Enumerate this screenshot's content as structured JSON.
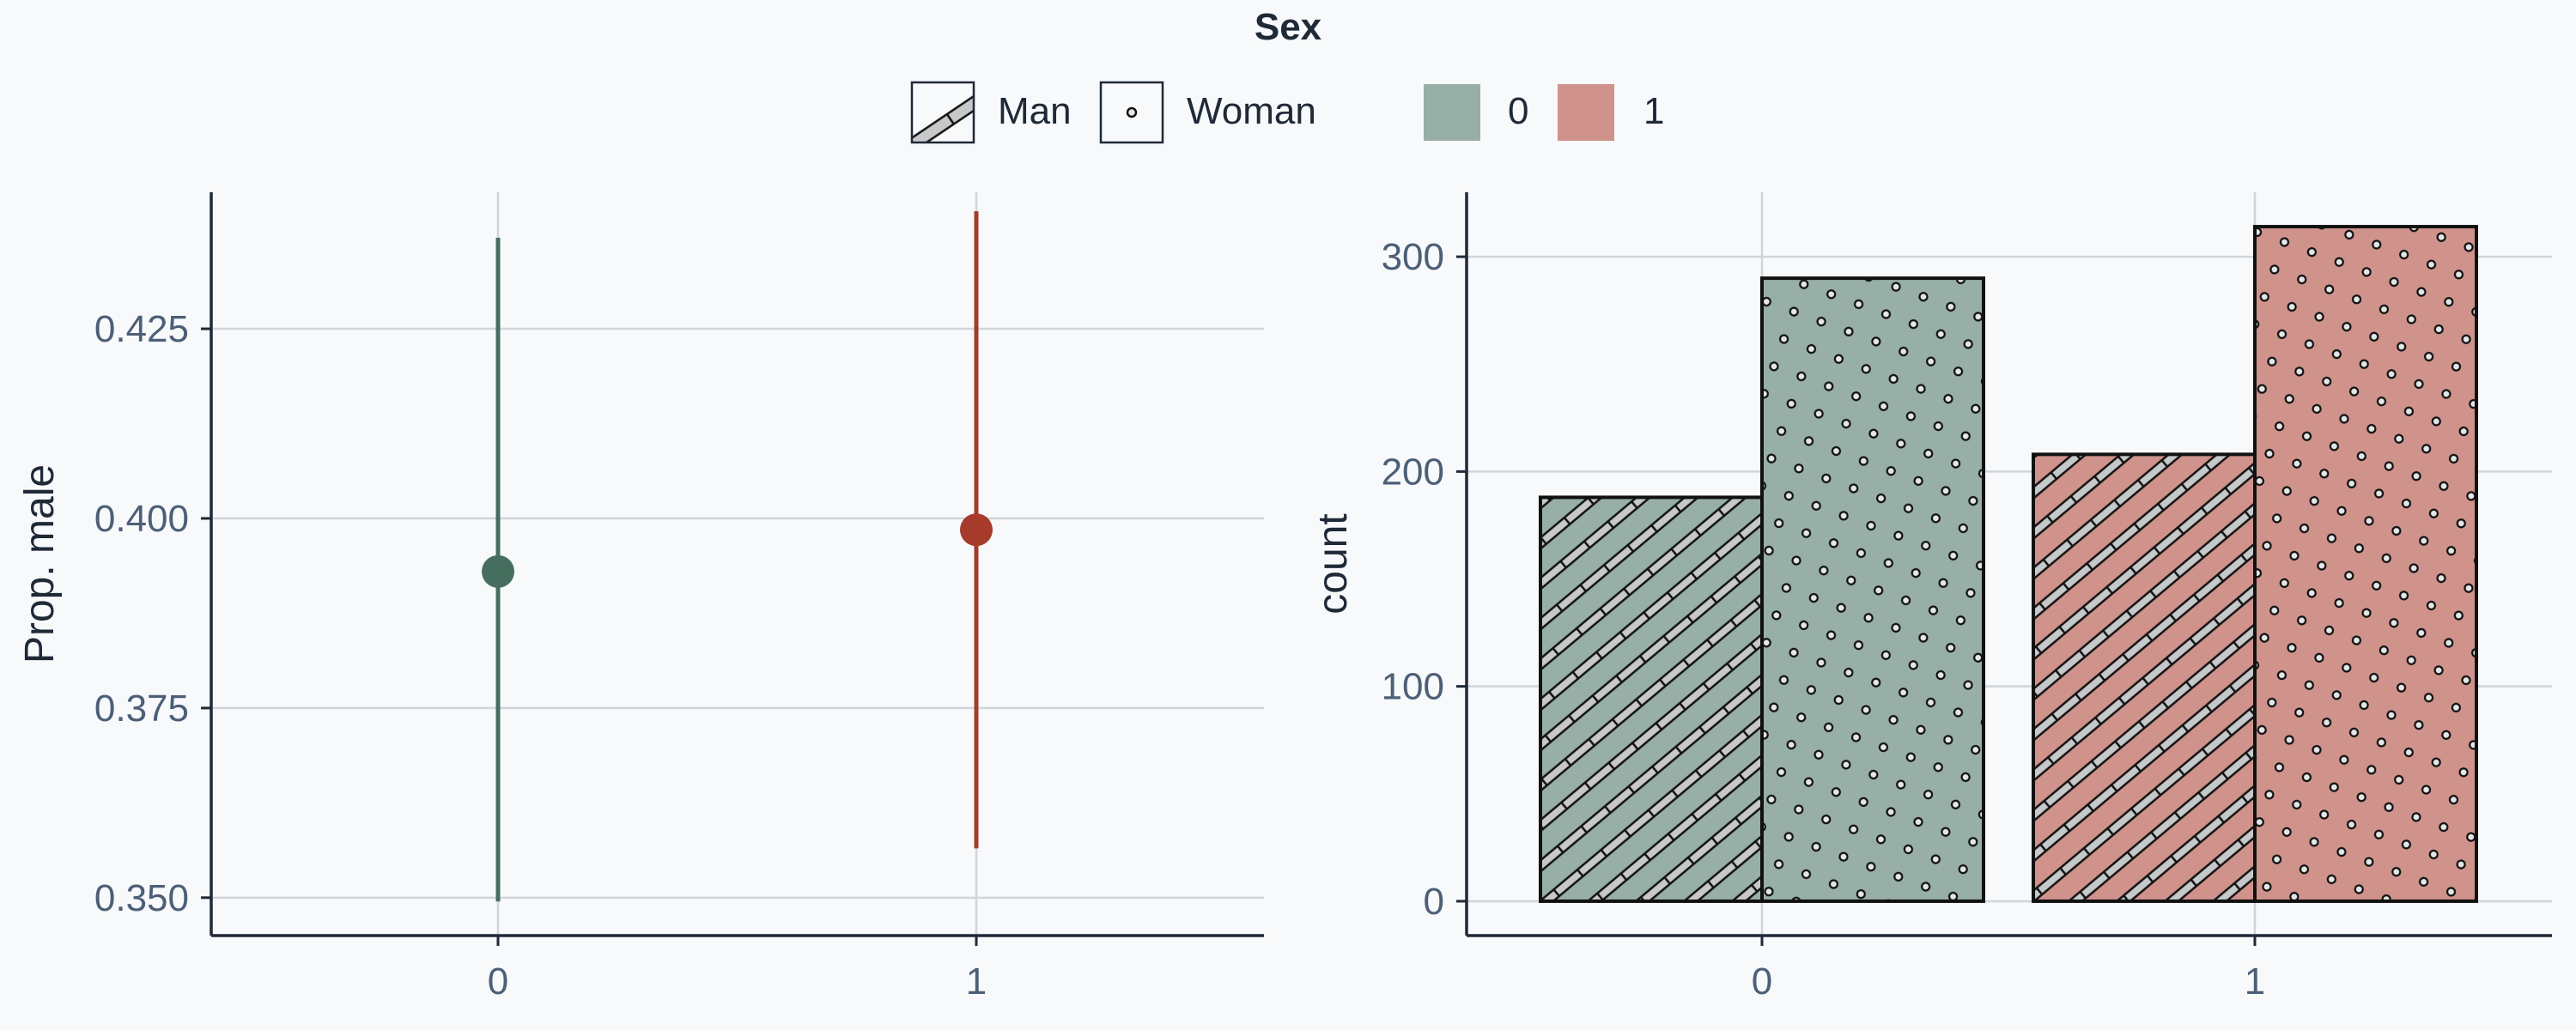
{
  "legend": {
    "title": "Sex",
    "pattern_items": [
      {
        "label": "Man",
        "pattern": "stripes"
      },
      {
        "label": "Woman",
        "pattern": "dots"
      }
    ],
    "fill_items": [
      {
        "label": "0",
        "color": "#97afa6"
      },
      {
        "label": "1",
        "color": "#d0938c"
      }
    ]
  },
  "chart_data": [
    {
      "type": "pointrange",
      "ylabel": "Prop. male",
      "categories": [
        "0",
        "1"
      ],
      "points": [
        {
          "x": "0",
          "y": 0.393,
          "ymin": 0.3495,
          "ymax": 0.437,
          "color": "#466e5f"
        },
        {
          "x": "1",
          "y": 0.3985,
          "ymin": 0.3565,
          "ymax": 0.4405,
          "color": "#a63a2b"
        }
      ],
      "ylim": [
        0.345,
        0.443
      ],
      "yticks": [
        "0.350",
        "0.375",
        "0.400",
        "0.425"
      ],
      "ytick_values": [
        0.35,
        0.375,
        0.4,
        0.425
      ],
      "grid": true
    },
    {
      "type": "bar",
      "ylabel": "count",
      "categories": [
        "0",
        "1"
      ],
      "series": [
        {
          "name": "Man",
          "pattern": "stripes",
          "values": [
            188,
            208
          ]
        },
        {
          "name": "Woman",
          "pattern": "dots",
          "values": [
            290,
            314
          ]
        }
      ],
      "fill_colors": [
        "#97afa6",
        "#d0938c"
      ],
      "ylim": [
        -16,
        330
      ],
      "yticks": [
        "0",
        "100",
        "200",
        "300"
      ],
      "ytick_values": [
        0,
        100,
        200,
        300
      ],
      "grid": true
    }
  ],
  "colors": {
    "grid": "#d0d5db",
    "axis": "#1f2937",
    "tick_text": "#4d5f77",
    "title_text": "#1f2937"
  }
}
